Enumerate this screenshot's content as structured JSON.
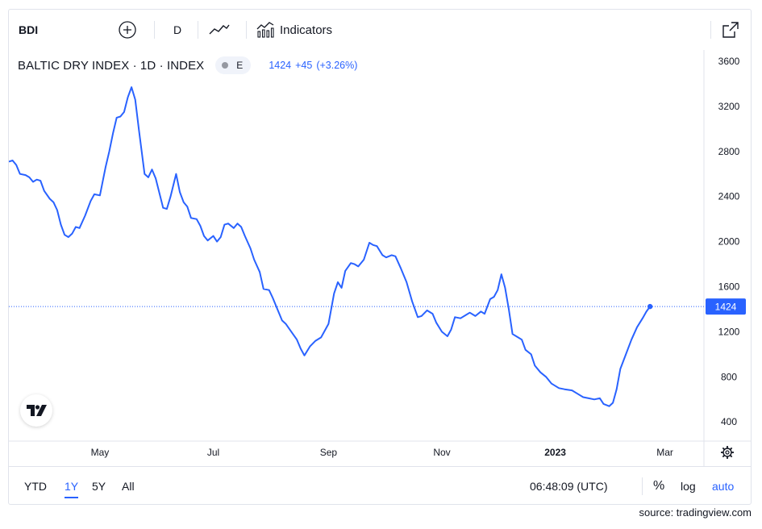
{
  "toolbar": {
    "symbol": "BDI",
    "add_icon": "plus-circle-icon",
    "interval": "D",
    "chart_style_icon": "line-chart-icon",
    "indicators_icon": "indicators-icon",
    "indicators_label": "Indicators",
    "fullscreen_icon": "fullscreen-icon"
  },
  "legend": {
    "title": "BALTIC DRY INDEX · 1D · INDEX",
    "badge": "E",
    "last": "1424",
    "change": "+45",
    "change_pct": "(+3.26%)"
  },
  "bottom": {
    "ranges": [
      "YTD",
      "1Y",
      "5Y",
      "All"
    ],
    "active_range": "1Y",
    "time": "06:48:09 (UTC)",
    "percent": "%",
    "log": "log",
    "auto": "auto"
  },
  "source": "source: tradingview.com",
  "colors": {
    "line": "#2962ff",
    "accent": "#2962ff",
    "text": "#131722",
    "axis_text": "#131722",
    "grid": "#e0e3eb"
  },
  "chart_data": {
    "type": "line",
    "title": "BALTIC DRY INDEX · 1D · INDEX",
    "ylim": [
      230,
      3700
    ],
    "y_ticks": [
      400,
      800,
      1200,
      1600,
      2000,
      2400,
      2800,
      3200,
      3600
    ],
    "x_ticks": [
      {
        "label": "May",
        "x": "2022-05-01"
      },
      {
        "label": "Jul",
        "x": "2022-07-01"
      },
      {
        "label": "Sep",
        "x": "2022-09-01"
      },
      {
        "label": "Nov",
        "x": "2022-11-01"
      },
      {
        "label": "2023",
        "x": "2023-01-01"
      },
      {
        "label": "Mar",
        "x": "2023-03-01"
      }
    ],
    "xlim": [
      "2022-03-13",
      "2023-03-22"
    ],
    "last_value": 1424,
    "last_value_label": "1424",
    "grid": false,
    "series": [
      {
        "points": [
          [
            "2022-03-13",
            2710
          ],
          [
            "2022-03-15",
            2720
          ],
          [
            "2022-03-17",
            2680
          ],
          [
            "2022-03-19",
            2600
          ],
          [
            "2022-03-22",
            2590
          ],
          [
            "2022-03-24",
            2570
          ],
          [
            "2022-03-26",
            2530
          ],
          [
            "2022-03-28",
            2550
          ],
          [
            "2022-03-30",
            2540
          ],
          [
            "2022-04-01",
            2450
          ],
          [
            "2022-04-04",
            2380
          ],
          [
            "2022-04-06",
            2350
          ],
          [
            "2022-04-08",
            2280
          ],
          [
            "2022-04-10",
            2150
          ],
          [
            "2022-04-12",
            2060
          ],
          [
            "2022-04-14",
            2040
          ],
          [
            "2022-04-16",
            2070
          ],
          [
            "2022-04-18",
            2130
          ],
          [
            "2022-04-20",
            2120
          ],
          [
            "2022-04-23",
            2230
          ],
          [
            "2022-04-26",
            2360
          ],
          [
            "2022-04-28",
            2420
          ],
          [
            "2022-05-01",
            2410
          ],
          [
            "2022-05-04",
            2660
          ],
          [
            "2022-05-06",
            2800
          ],
          [
            "2022-05-08",
            2960
          ],
          [
            "2022-05-10",
            3100
          ],
          [
            "2022-05-12",
            3110
          ],
          [
            "2022-05-14",
            3150
          ],
          [
            "2022-05-16",
            3280
          ],
          [
            "2022-05-18",
            3370
          ],
          [
            "2022-05-20",
            3260
          ],
          [
            "2022-05-22",
            2990
          ],
          [
            "2022-05-25",
            2600
          ],
          [
            "2022-05-27",
            2570
          ],
          [
            "2022-05-29",
            2640
          ],
          [
            "2022-05-31",
            2560
          ],
          [
            "2022-06-02",
            2430
          ],
          [
            "2022-06-04",
            2300
          ],
          [
            "2022-06-06",
            2290
          ],
          [
            "2022-06-08",
            2400
          ],
          [
            "2022-06-11",
            2600
          ],
          [
            "2022-06-13",
            2440
          ],
          [
            "2022-06-15",
            2350
          ],
          [
            "2022-06-17",
            2310
          ],
          [
            "2022-06-19",
            2210
          ],
          [
            "2022-06-22",
            2200
          ],
          [
            "2022-06-24",
            2140
          ],
          [
            "2022-06-26",
            2050
          ],
          [
            "2022-06-28",
            2010
          ],
          [
            "2022-07-01",
            2050
          ],
          [
            "2022-07-03",
            2000
          ],
          [
            "2022-07-05",
            2040
          ],
          [
            "2022-07-07",
            2150
          ],
          [
            "2022-07-09",
            2160
          ],
          [
            "2022-07-12",
            2120
          ],
          [
            "2022-07-14",
            2160
          ],
          [
            "2022-07-16",
            2130
          ],
          [
            "2022-07-18",
            2050
          ],
          [
            "2022-07-21",
            1940
          ],
          [
            "2022-07-23",
            1840
          ],
          [
            "2022-07-26",
            1730
          ],
          [
            "2022-07-28",
            1580
          ],
          [
            "2022-07-31",
            1570
          ],
          [
            "2022-08-02",
            1500
          ],
          [
            "2022-08-05",
            1380
          ],
          [
            "2022-08-07",
            1300
          ],
          [
            "2022-08-09",
            1270
          ],
          [
            "2022-08-12",
            1200
          ],
          [
            "2022-08-15",
            1130
          ],
          [
            "2022-08-17",
            1050
          ],
          [
            "2022-08-19",
            990
          ],
          [
            "2022-08-22",
            1070
          ],
          [
            "2022-08-25",
            1120
          ],
          [
            "2022-08-28",
            1150
          ],
          [
            "2022-08-30",
            1210
          ],
          [
            "2022-09-01",
            1270
          ],
          [
            "2022-09-04",
            1540
          ],
          [
            "2022-09-06",
            1640
          ],
          [
            "2022-09-08",
            1590
          ],
          [
            "2022-09-10",
            1740
          ],
          [
            "2022-09-13",
            1810
          ],
          [
            "2022-09-15",
            1800
          ],
          [
            "2022-09-17",
            1780
          ],
          [
            "2022-09-20",
            1840
          ],
          [
            "2022-09-23",
            1990
          ],
          [
            "2022-09-25",
            1970
          ],
          [
            "2022-09-27",
            1960
          ],
          [
            "2022-09-30",
            1880
          ],
          [
            "2022-10-02",
            1860
          ],
          [
            "2022-10-05",
            1880
          ],
          [
            "2022-10-07",
            1870
          ],
          [
            "2022-10-10",
            1760
          ],
          [
            "2022-10-13",
            1640
          ],
          [
            "2022-10-16",
            1470
          ],
          [
            "2022-10-19",
            1330
          ],
          [
            "2022-10-21",
            1340
          ],
          [
            "2022-10-24",
            1390
          ],
          [
            "2022-10-27",
            1360
          ],
          [
            "2022-10-29",
            1280
          ],
          [
            "2022-11-01",
            1200
          ],
          [
            "2022-11-04",
            1160
          ],
          [
            "2022-11-06",
            1220
          ],
          [
            "2022-11-08",
            1330
          ],
          [
            "2022-11-11",
            1320
          ],
          [
            "2022-11-14",
            1350
          ],
          [
            "2022-11-16",
            1370
          ],
          [
            "2022-11-19",
            1340
          ],
          [
            "2022-11-22",
            1380
          ],
          [
            "2022-11-24",
            1360
          ],
          [
            "2022-11-27",
            1490
          ],
          [
            "2022-11-29",
            1510
          ],
          [
            "2022-12-01",
            1570
          ],
          [
            "2022-12-03",
            1710
          ],
          [
            "2022-12-05",
            1590
          ],
          [
            "2022-12-07",
            1400
          ],
          [
            "2022-12-09",
            1180
          ],
          [
            "2022-12-12",
            1150
          ],
          [
            "2022-12-14",
            1130
          ],
          [
            "2022-12-16",
            1040
          ],
          [
            "2022-12-19",
            1000
          ],
          [
            "2022-12-21",
            900
          ],
          [
            "2022-12-24",
            840
          ],
          [
            "2022-12-27",
            800
          ],
          [
            "2022-12-30",
            740
          ],
          [
            "2023-01-03",
            700
          ],
          [
            "2023-01-06",
            690
          ],
          [
            "2023-01-10",
            680
          ],
          [
            "2023-01-13",
            650
          ],
          [
            "2023-01-16",
            620
          ],
          [
            "2023-01-19",
            610
          ],
          [
            "2023-01-22",
            600
          ],
          [
            "2023-01-25",
            610
          ],
          [
            "2023-01-27",
            560
          ],
          [
            "2023-01-30",
            540
          ],
          [
            "2023-02-01",
            570
          ],
          [
            "2023-02-03",
            690
          ],
          [
            "2023-02-05",
            870
          ],
          [
            "2023-02-08",
            1000
          ],
          [
            "2023-02-11",
            1130
          ],
          [
            "2023-02-14",
            1240
          ],
          [
            "2023-02-17",
            1320
          ],
          [
            "2023-02-19",
            1379
          ],
          [
            "2023-02-21",
            1424
          ]
        ]
      }
    ]
  }
}
